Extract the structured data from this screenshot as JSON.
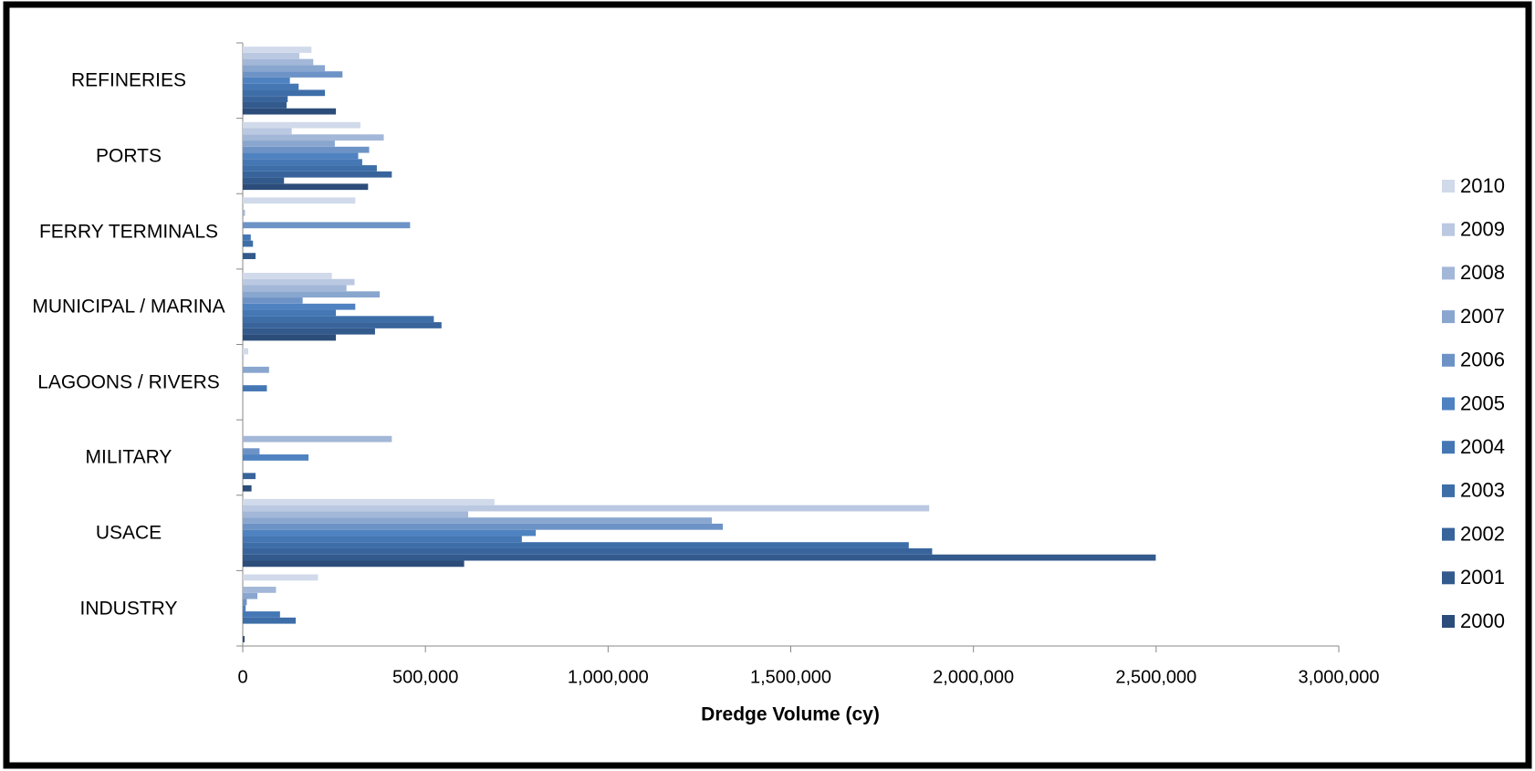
{
  "chart_data": {
    "type": "hbar",
    "x_label": "Dredge Volume (cy)",
    "categories": [
      "INDUSTRY",
      "USACE",
      "MILITARY",
      "LAGOONS / RIVERS",
      "MUNICIPAL / MARINA",
      "FERRY TERMINALS",
      "PORTS",
      "REFINERIES"
    ],
    "series": [
      {
        "name": "2000",
        "color": "#2c4d7a",
        "values": [
          5000,
          606000,
          24000,
          0,
          255000,
          0,
          343000,
          255000
        ]
      },
      {
        "name": "2001",
        "color": "#335a8c",
        "values": [
          0,
          2499000,
          0,
          0,
          362000,
          35000,
          113000,
          120000
        ]
      },
      {
        "name": "2002",
        "color": "#38649b",
        "values": [
          0,
          1887000,
          35000,
          0,
          544000,
          0,
          408000,
          123000
        ]
      },
      {
        "name": "2003",
        "color": "#3d6ea8",
        "values": [
          145000,
          1823000,
          0,
          0,
          523000,
          28000,
          367000,
          225000
        ]
      },
      {
        "name": "2004",
        "color": "#4577b5",
        "values": [
          102000,
          764000,
          0,
          66000,
          255000,
          22000,
          327000,
          153000
        ]
      },
      {
        "name": "2005",
        "color": "#4f82c0",
        "values": [
          8000,
          802000,
          180000,
          0,
          308000,
          0,
          316000,
          129000
        ]
      },
      {
        "name": "2006",
        "color": "#6d93c6",
        "values": [
          11000,
          1314000,
          46000,
          0,
          164000,
          458000,
          346000,
          273000
        ]
      },
      {
        "name": "2007",
        "color": "#89a6cf",
        "values": [
          40000,
          1284000,
          0,
          72000,
          375000,
          0,
          252000,
          225000
        ]
      },
      {
        "name": "2008",
        "color": "#a3b7d8",
        "values": [
          91000,
          617000,
          408000,
          0,
          284000,
          6000,
          386000,
          193000
        ]
      },
      {
        "name": "2009",
        "color": "#bac8e1",
        "values": [
          0,
          1879000,
          0,
          3000,
          306000,
          0,
          134000,
          155000
        ]
      },
      {
        "name": "2010",
        "color": "#d0daea",
        "values": [
          206000,
          689000,
          0,
          15000,
          244000,
          308000,
          322000,
          188000
        ]
      }
    ],
    "xlim": [
      0,
      3000000
    ],
    "xticks": [
      0,
      {
        "value": 500000,
        "label": "500,000"
      },
      {
        "value": 1000000,
        "label": "1,000,000"
      },
      {
        "value": 1500000,
        "label": "1,500,000"
      },
      {
        "value": 2000000,
        "label": "2,000,000"
      },
      {
        "value": 2500000,
        "label": "2,500,000"
      },
      {
        "value": 3000000,
        "label": "3,000,000"
      }
    ],
    "grid": false,
    "legend": "right"
  }
}
